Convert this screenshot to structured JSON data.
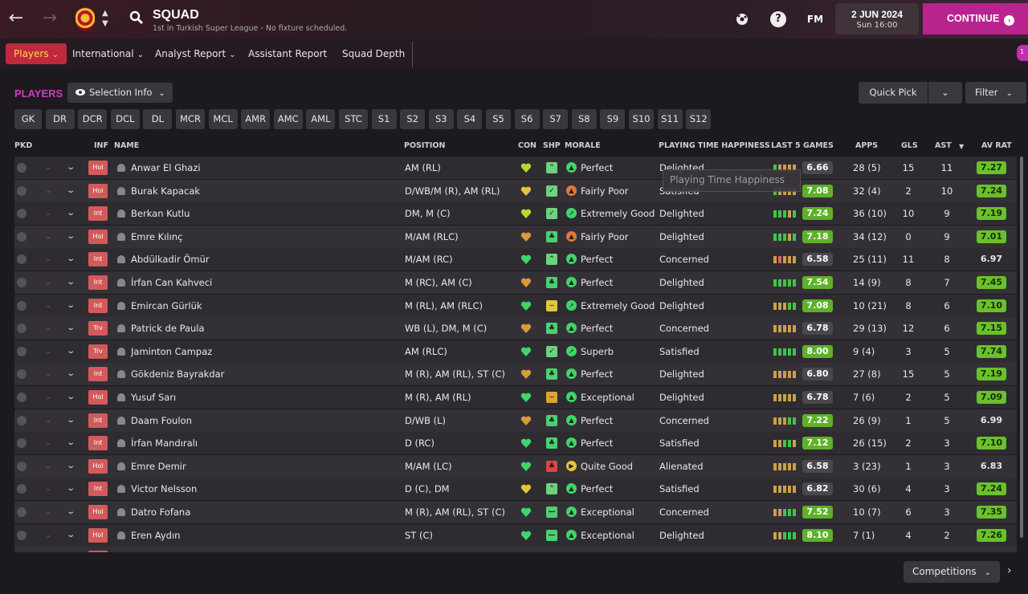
{
  "header": {
    "title": "SQUAD",
    "subtitle": "1st in Turkish Super League - No fixture scheduled.",
    "help_label": "?",
    "fm_label": "FM",
    "date": "2 JUN 2024",
    "time": "Sun 16:00",
    "continue_label": "CONTINUE",
    "continue_icon": "›",
    "notification_count": "1"
  },
  "subnav": {
    "players": "Players",
    "international": "International",
    "analyst": "Analyst Report",
    "assistant": "Assistant Report",
    "depth": "Squad Depth"
  },
  "toolbar": {
    "players_label": "PLAYERS",
    "selection_info": "Selection Info",
    "quick_pick": "Quick Pick",
    "filter": "Filter"
  },
  "positions": [
    "GK",
    "DR",
    "DCR",
    "DCL",
    "DL",
    "MCR",
    "MCL",
    "AMR",
    "AMC",
    "AML",
    "STC",
    "S1",
    "S2",
    "S3",
    "S4",
    "S5",
    "S6",
    "S7",
    "S8",
    "S9",
    "S10",
    "S11",
    "S12"
  ],
  "columns": {
    "pkd": "PKD",
    "inf": "INF",
    "name": "NAME",
    "position": "POSITION",
    "con": "CON",
    "shp": "SHP",
    "morale": "MORALE",
    "pth": "PLAYING TIME HAPPINESS",
    "last5": "LAST 5 GAMES",
    "apps": "APPS",
    "gls": "GLS",
    "ast": "AST",
    "avrat": "AV RAT"
  },
  "tooltip": "Playing Time Happiness",
  "competitions": "Competitions",
  "colors": {
    "accent": "#b8238e",
    "players_label": "#cf3dc0",
    "rating_green": "#6cc02b",
    "inf_badge": "#d35a5a"
  },
  "players": [
    {
      "dash": "-",
      "inf": "Hol",
      "name": "Anwar El Ghazi",
      "position": "AM (RL)",
      "con": "yellow-green",
      "shp": "up",
      "morale": "Perfect",
      "mor": "perfect",
      "pth": "Delighted",
      "form": [
        "g",
        "o",
        "o",
        "o",
        "o"
      ],
      "last5": "6.66",
      "l5good": false,
      "apps": "28 (5)",
      "gls": "15",
      "ast": "11",
      "avrat": "7.27",
      "avgood": true
    },
    {
      "dash": "-",
      "inf": "Hol",
      "name": "Burak Kapacak",
      "position": "D/WB/M (R), AM (RL)",
      "con": "yellow",
      "shp": "check",
      "morale": "Fairly Poor",
      "mor": "poor",
      "pth": "Satisfied",
      "form": [
        "g",
        "o",
        "o",
        "o",
        "o"
      ],
      "last5": "7.08",
      "l5good": true,
      "apps": "32 (4)",
      "gls": "2",
      "ast": "10",
      "avrat": "7.24",
      "avgood": true
    },
    {
      "dash": "-",
      "inf": "Int",
      "name": "Berkan Kutlu",
      "position": "DM, M (C)",
      "con": "yellow-green",
      "shp": "check",
      "morale": "Extremely Good",
      "mor": "good",
      "pth": "Delighted",
      "form": [
        "g",
        "g",
        "g",
        "o",
        "g"
      ],
      "last5": "7.24",
      "l5good": true,
      "apps": "36 (10)",
      "gls": "10",
      "ast": "9",
      "avrat": "7.19",
      "avgood": true
    },
    {
      "dash": "-",
      "inf": "Hol",
      "name": "Emre Kılınç",
      "position": "M/AM (RLC)",
      "con": "orange",
      "shp": "club",
      "morale": "Fairly Poor",
      "mor": "poor",
      "pth": "Delighted",
      "form": [
        "g",
        "g",
        "g",
        "o",
        "g"
      ],
      "last5": "7.18",
      "l5good": true,
      "apps": "34 (12)",
      "gls": "0",
      "ast": "9",
      "avrat": "7.01",
      "avgood": true
    },
    {
      "dash": "-",
      "inf": "Int",
      "name": "Abdülkadir Ömür",
      "position": "M/AM (RC)",
      "con": "green",
      "shp": "up",
      "morale": "Perfect",
      "mor": "perfect",
      "pth": "Concerned",
      "form": [
        "o",
        "r",
        "o",
        "o",
        "o"
      ],
      "last5": "6.58",
      "l5good": false,
      "apps": "25 (11)",
      "gls": "11",
      "ast": "8",
      "avrat": "6.97",
      "avgood": false
    },
    {
      "dash": "-",
      "inf": "Int",
      "name": "İrfan Can Kahveci",
      "position": "M (RC), AM (C)",
      "con": "orange",
      "shp": "club",
      "morale": "Perfect",
      "mor": "perfect",
      "pth": "Delighted",
      "form": [
        "g",
        "g",
        "g",
        "g",
        "g"
      ],
      "last5": "7.54",
      "l5good": true,
      "apps": "14 (9)",
      "gls": "8",
      "ast": "7",
      "avrat": "7.45",
      "avgood": true
    },
    {
      "dash": "-",
      "inf": "Int",
      "name": "Emircan Gürlük",
      "position": "M (RL), AM (RLC)",
      "con": "green",
      "shp": "yellow",
      "morale": "Extremely Good",
      "mor": "good",
      "pth": "Delighted",
      "form": [
        "o",
        "o",
        "o",
        "g",
        "g"
      ],
      "last5": "7.08",
      "l5good": true,
      "apps": "10 (21)",
      "gls": "8",
      "ast": "6",
      "avrat": "7.10",
      "avgood": true
    },
    {
      "dash": "-",
      "inf": "Trv",
      "name": "Patrick de Paula",
      "position": "WB (L), DM, M (C)",
      "con": "orange",
      "shp": "club",
      "morale": "Perfect",
      "mor": "perfect",
      "pth": "Concerned",
      "form": [
        "o",
        "o",
        "o",
        "o",
        "o"
      ],
      "last5": "6.78",
      "l5good": false,
      "apps": "29 (13)",
      "gls": "12",
      "ast": "6",
      "avrat": "7.15",
      "avgood": true
    },
    {
      "dash": "-",
      "inf": "Trv",
      "name": "Jaminton Campaz",
      "position": "AM (RLC)",
      "con": "green",
      "shp": "check",
      "morale": "Superb",
      "mor": "good",
      "pth": "Satisfied",
      "form": [
        "g",
        "g",
        "g",
        "g",
        "g"
      ],
      "last5": "8.00",
      "l5good": true,
      "apps": "9 (4)",
      "gls": "3",
      "ast": "5",
      "avrat": "7.74",
      "avgood": true
    },
    {
      "dash": "-",
      "inf": "Int",
      "name": "Gökdeniz Bayrakdar",
      "position": "M (R), AM (RL), ST (C)",
      "con": "orange",
      "shp": "club",
      "morale": "Perfect",
      "mor": "perfect",
      "pth": "Delighted",
      "form": [
        "o",
        "o",
        "o",
        "o",
        "o"
      ],
      "last5": "6.80",
      "l5good": false,
      "apps": "27 (8)",
      "gls": "15",
      "ast": "5",
      "avrat": "7.19",
      "avgood": true
    },
    {
      "dash": "-",
      "inf": "Hol",
      "name": "Yusuf Sarı",
      "position": "M (R), AM (RL)",
      "con": "green",
      "shp": "orange",
      "morale": "Exceptional",
      "mor": "perfect",
      "pth": "Delighted",
      "form": [
        "o",
        "o",
        "o",
        "o",
        "o"
      ],
      "last5": "6.78",
      "l5good": false,
      "apps": "7 (6)",
      "gls": "2",
      "ast": "5",
      "avrat": "7.09",
      "avgood": true
    },
    {
      "dash": "-",
      "inf": "Int",
      "name": "Daam Foulon",
      "position": "D/WB (L)",
      "con": "orange",
      "shp": "club",
      "morale": "Perfect",
      "mor": "perfect",
      "pth": "Concerned",
      "form": [
        "o",
        "o",
        "o",
        "g",
        "g"
      ],
      "last5": "7.22",
      "l5good": true,
      "apps": "26 (9)",
      "gls": "1",
      "ast": "5",
      "avrat": "6.99",
      "avgood": false
    },
    {
      "dash": "-",
      "inf": "Int",
      "name": "İrfan Mandıralı",
      "position": "D (RC)",
      "con": "green",
      "shp": "club",
      "morale": "Perfect",
      "mor": "perfect",
      "pth": "Satisfied",
      "form": [
        "o",
        "o",
        "g",
        "g",
        "o"
      ],
      "last5": "7.12",
      "l5good": true,
      "apps": "26 (15)",
      "gls": "2",
      "ast": "3",
      "avrat": "7.10",
      "avgood": true
    },
    {
      "dash": "-",
      "inf": "Hol",
      "name": "Emre Demir",
      "position": "M/AM (LC)",
      "con": "green",
      "shp": "red",
      "morale": "Quite Good",
      "mor": "quite",
      "pth": "Alienated",
      "form": [
        "o",
        "o",
        "o",
        "o",
        "o"
      ],
      "last5": "6.58",
      "l5good": false,
      "apps": "3 (23)",
      "gls": "1",
      "ast": "3",
      "avrat": "6.83",
      "avgood": false
    },
    {
      "dash": "-",
      "inf": "Int",
      "name": "Victor Nelsson",
      "position": "D (C), DM",
      "con": "yellow",
      "shp": "up",
      "morale": "Perfect",
      "mor": "perfect",
      "pth": "Satisfied",
      "form": [
        "o",
        "o",
        "o",
        "o",
        "o"
      ],
      "last5": "6.82",
      "l5good": false,
      "apps": "30 (6)",
      "gls": "4",
      "ast": "3",
      "avrat": "7.24",
      "avgood": true
    },
    {
      "dash": "-",
      "inf": "Hol",
      "name": "Datro Fofana",
      "position": "M (R), AM (RL), ST (C)",
      "con": "green",
      "shp": "minus",
      "morale": "Exceptional",
      "mor": "perfect",
      "pth": "Concerned",
      "form": [
        "o",
        "o",
        "g",
        "g",
        "g"
      ],
      "last5": "7.52",
      "l5good": true,
      "apps": "10 (7)",
      "gls": "6",
      "ast": "3",
      "avrat": "7.35",
      "avgood": true
    },
    {
      "dash": "-",
      "inf": "Hol",
      "name": "Eren Aydın",
      "position": "ST (C)",
      "con": "green",
      "shp": "minus",
      "morale": "Exceptional",
      "mor": "perfect",
      "pth": "Delighted",
      "form": [
        "o",
        "o",
        "g",
        "g",
        "g"
      ],
      "last5": "8.10",
      "l5good": true,
      "apps": "7 (1)",
      "gls": "4",
      "ast": "2",
      "avrat": "7.26",
      "avgood": true
    }
  ]
}
